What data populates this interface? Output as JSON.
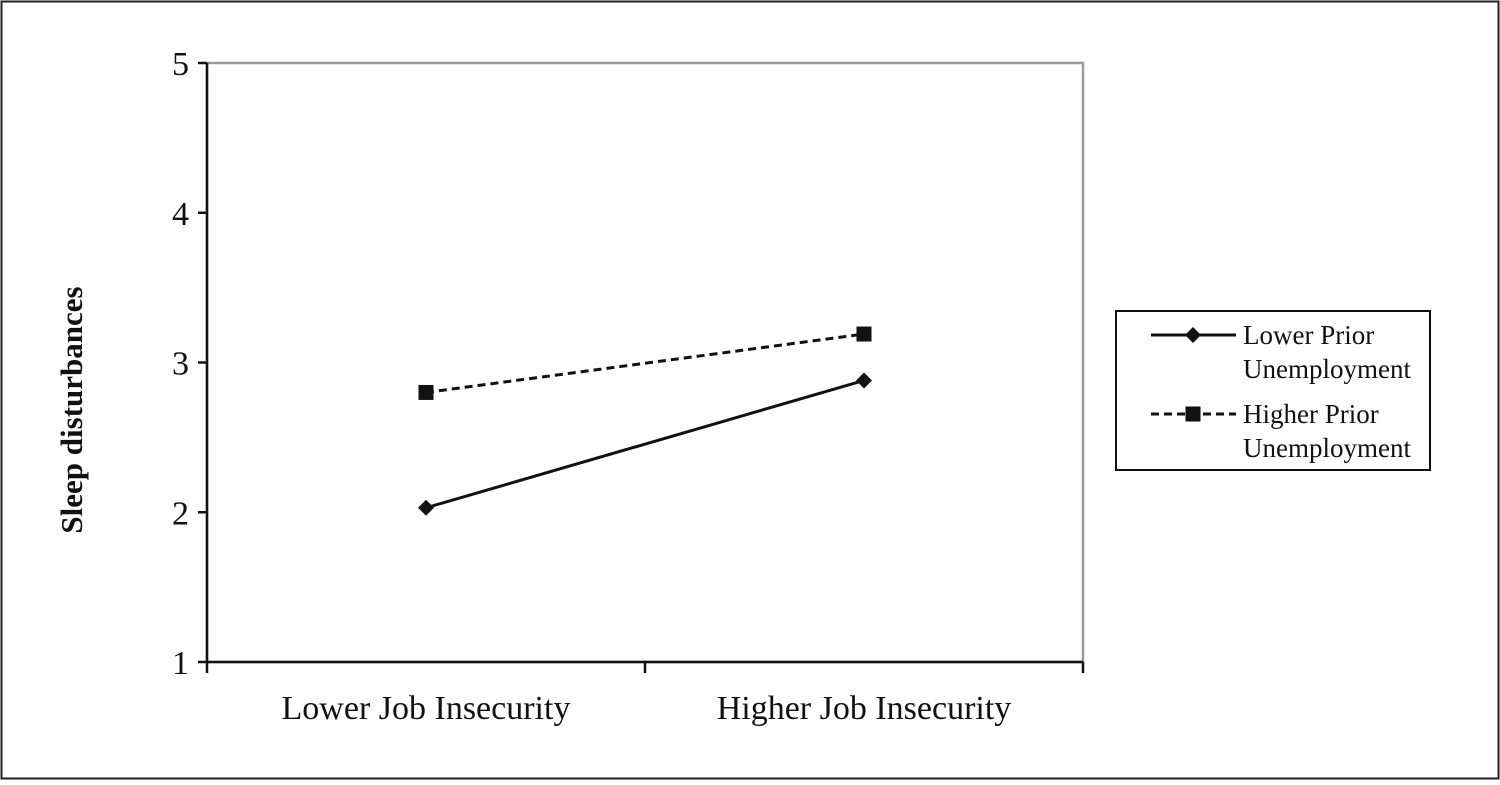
{
  "chart_data": {
    "type": "line",
    "categories": [
      "Lower Job Insecurity",
      "Higher Job Insecurity"
    ],
    "series": [
      {
        "name": "Lower Prior Unemployment",
        "name_lines": [
          "Lower Prior",
          "Unemployment"
        ],
        "values": [
          2.03,
          2.88
        ],
        "line_style": "solid",
        "marker": "diamond",
        "color": "#111111"
      },
      {
        "name": "Higher Prior Unemployment",
        "name_lines": [
          "Higher Prior",
          "Unemployment"
        ],
        "values": [
          2.8,
          3.19
        ],
        "line_style": "dashed",
        "marker": "square",
        "color": "#111111"
      }
    ],
    "xlabel": "",
    "ylabel": "Sleep disturbances",
    "ylim": [
      1,
      5
    ],
    "yticks": [
      1,
      2,
      3,
      4,
      5
    ],
    "grid": false,
    "legend_position": "right"
  }
}
